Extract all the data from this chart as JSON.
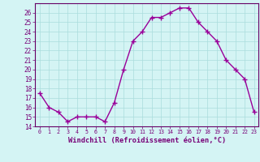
{
  "x": [
    0,
    1,
    2,
    3,
    4,
    5,
    6,
    7,
    8,
    9,
    10,
    11,
    12,
    13,
    14,
    15,
    16,
    17,
    18,
    19,
    20,
    21,
    22,
    23
  ],
  "y": [
    17.5,
    16.0,
    15.5,
    14.5,
    15.0,
    15.0,
    15.0,
    14.5,
    16.5,
    20.0,
    23.0,
    24.0,
    25.5,
    25.5,
    26.0,
    26.5,
    26.5,
    25.0,
    24.0,
    23.0,
    21.0,
    20.0,
    19.0,
    15.5
  ],
  "xlabel": "Windchill (Refroidissement éolien,°C)",
  "ylim": [
    14,
    27
  ],
  "xlim": [
    -0.5,
    23.5
  ],
  "yticks": [
    14,
    15,
    16,
    17,
    18,
    19,
    20,
    21,
    22,
    23,
    24,
    25,
    26
  ],
  "xticks": [
    0,
    1,
    2,
    3,
    4,
    5,
    6,
    7,
    8,
    9,
    10,
    11,
    12,
    13,
    14,
    15,
    16,
    17,
    18,
    19,
    20,
    21,
    22,
    23
  ],
  "line_color": "#990099",
  "marker": "+",
  "background_color": "#d4f4f4",
  "grid_color": "#aadddd",
  "spine_color": "#660066",
  "label_color": "#770077"
}
